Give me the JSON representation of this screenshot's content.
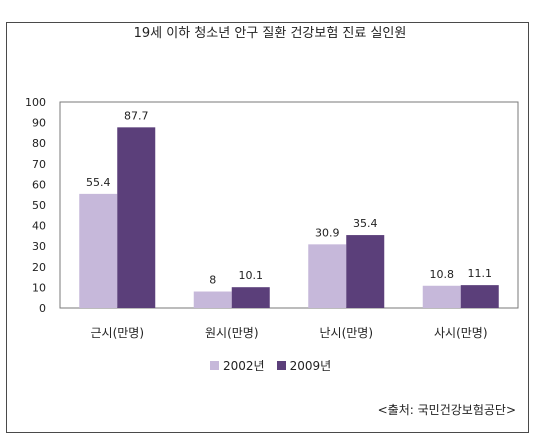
{
  "chart_data": {
    "type": "bar",
    "title": "19세 이하 청소년 안구 질환 건강보험 진료 실인원",
    "categories": [
      "근시(만명)",
      "원시(만명)",
      "난시(만명)",
      "사시(만명)"
    ],
    "series": [
      {
        "name": "2002년",
        "values": [
          55.4,
          8,
          30.9,
          10.8
        ],
        "color": "#c6b8da"
      },
      {
        "name": "2009년",
        "values": [
          87.7,
          10.1,
          35.4,
          11.1
        ],
        "color": "#5b3f7a"
      }
    ],
    "value_labels": [
      [
        "55.4",
        "8",
        "30.9",
        "10.8"
      ],
      [
        "87.7",
        "10.1",
        "35.4",
        "11.1"
      ]
    ],
    "ylim": [
      0,
      100
    ],
    "yticks": [
      "0",
      "10",
      "20",
      "30",
      "40",
      "50",
      "60",
      "70",
      "80",
      "90",
      "100"
    ],
    "grid": false,
    "legend_position": "bottom"
  },
  "source_text": "<출처: 국민건강보험공단>"
}
